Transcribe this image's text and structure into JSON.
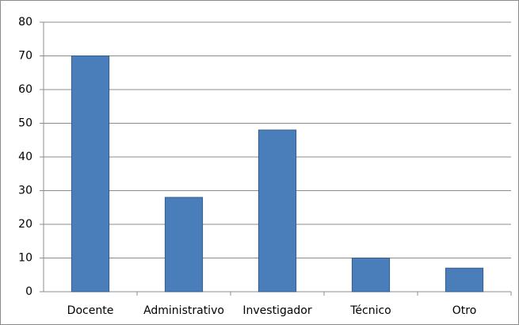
{
  "chart_data": {
    "type": "bar",
    "categories": [
      "Docente",
      "Administrativo",
      "Investigador",
      "Técnico",
      "Otro"
    ],
    "values": [
      70,
      28,
      48,
      10,
      7
    ],
    "color": "#4a7ebb",
    "ylim": [
      0,
      80
    ],
    "yticks": [
      0,
      10,
      20,
      30,
      40,
      50,
      60,
      70,
      80
    ],
    "grid": true
  }
}
